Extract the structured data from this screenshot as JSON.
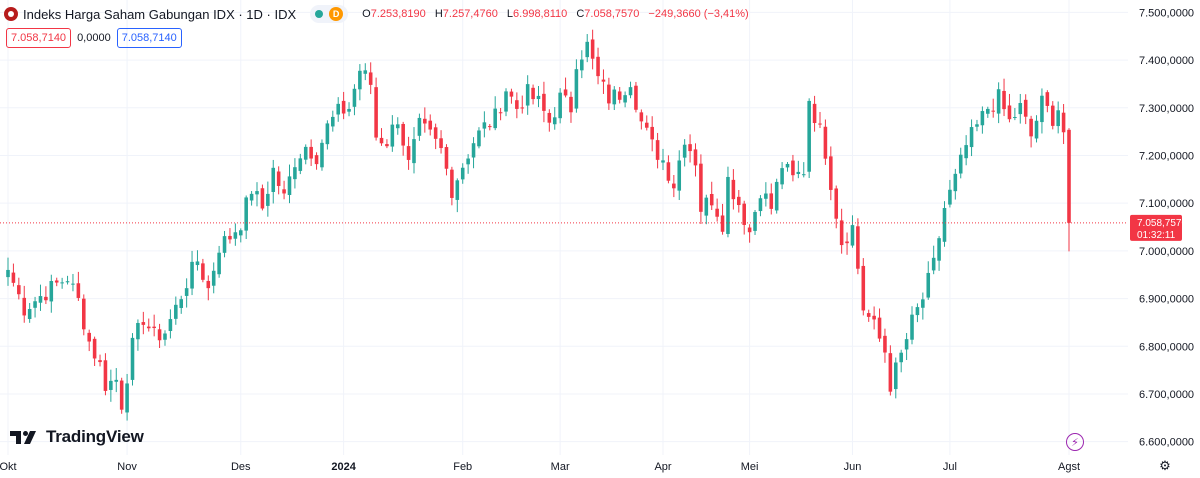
{
  "header": {
    "title": "Indeks Harga Saham Gabungan IDX · 1D · IDX",
    "market_badge": "D",
    "ohlc": [
      {
        "key": "O",
        "value": "7.253,8190"
      },
      {
        "key": "H",
        "value": "7.257,4760"
      },
      {
        "key": "L",
        "value": "6.998,8110"
      },
      {
        "key": "C",
        "value": "7.058,7570"
      }
    ],
    "change": "−249,3660 (−3,41%)"
  },
  "quote": {
    "bid": "7.058,7140",
    "spread": "0,0000",
    "ask": "7.058,7140"
  },
  "brand": "TradingView",
  "icons": {
    "logo": "idx-logo-icon",
    "alert": "lightning-icon",
    "settings": "gear-icon",
    "brand": "tradingview-logo-icon"
  },
  "colors": {
    "up": "#26a69a",
    "down": "#f23645",
    "grid": "#f0f3fa",
    "text": "#131722",
    "price_line": "#f23645"
  },
  "chart_data": {
    "type": "candlestick",
    "price_axis_labels": [
      "7.500,0000",
      "7.400,0000",
      "7.300,0000",
      "7.200,0000",
      "7.100,0000",
      "7.000,0000",
      "6.900,0000",
      "6.800,0000",
      "6.700,0000",
      "6.600,0000"
    ],
    "price_ticks": [
      7500,
      7400,
      7300,
      7200,
      7100,
      7000,
      6900,
      6800,
      6700,
      6600
    ],
    "ylim": [
      6572,
      7526
    ],
    "time_labels": [
      {
        "label": "Okt",
        "index": 0
      },
      {
        "label": "Nov",
        "index": 22
      },
      {
        "label": "Des",
        "index": 43
      },
      {
        "label": "2024",
        "index": 62
      },
      {
        "label": "Feb",
        "index": 84
      },
      {
        "label": "Mar",
        "index": 102
      },
      {
        "label": "Apr",
        "index": 121
      },
      {
        "label": "Mei",
        "index": 137
      },
      {
        "label": "Jun",
        "index": 156
      },
      {
        "label": "Jul",
        "index": 174
      },
      {
        "label": "Agst",
        "index": 196
      }
    ],
    "last_price": {
      "value": 7058.757,
      "label": "7.058,7570",
      "countdown": "01:32:11"
    },
    "anchors": [
      [
        0,
        6960
      ],
      [
        3,
        6880
      ],
      [
        6,
        6905
      ],
      [
        9,
        6930
      ],
      [
        11,
        6945
      ],
      [
        13,
        6895
      ],
      [
        15,
        6810
      ],
      [
        17,
        6760
      ],
      [
        18,
        6720
      ],
      [
        20,
        6730
      ],
      [
        21,
        6680
      ],
      [
        23,
        6800
      ],
      [
        25,
        6860
      ],
      [
        27,
        6820
      ],
      [
        29,
        6830
      ],
      [
        31,
        6880
      ],
      [
        33,
        6935
      ],
      [
        35,
        6980
      ],
      [
        37,
        6920
      ],
      [
        39,
        7010
      ],
      [
        41,
        7030
      ],
      [
        43,
        7060
      ],
      [
        45,
        7130
      ],
      [
        47,
        7090
      ],
      [
        49,
        7170
      ],
      [
        51,
        7110
      ],
      [
        53,
        7190
      ],
      [
        55,
        7220
      ],
      [
        57,
        7200
      ],
      [
        59,
        7260
      ],
      [
        61,
        7290
      ],
      [
        63,
        7300
      ],
      [
        65,
        7380
      ],
      [
        67,
        7350
      ],
      [
        68,
        7240
      ],
      [
        70,
        7230
      ],
      [
        72,
        7280
      ],
      [
        74,
        7180
      ],
      [
        76,
        7260
      ],
      [
        78,
        7240
      ],
      [
        80,
        7210
      ],
      [
        82,
        7130
      ],
      [
        84,
        7180
      ],
      [
        86,
        7230
      ],
      [
        88,
        7260
      ],
      [
        90,
        7280
      ],
      [
        92,
        7340
      ],
      [
        94,
        7300
      ],
      [
        96,
        7330
      ],
      [
        98,
        7310
      ],
      [
        100,
        7270
      ],
      [
        102,
        7320
      ],
      [
        104,
        7300
      ],
      [
        105,
        7400
      ],
      [
        107,
        7430
      ],
      [
        109,
        7360
      ],
      [
        111,
        7320
      ],
      [
        113,
        7330
      ],
      [
        115,
        7360
      ],
      [
        117,
        7270
      ],
      [
        119,
        7220
      ],
      [
        121,
        7190
      ],
      [
        123,
        7140
      ],
      [
        125,
        7240
      ],
      [
        127,
        7190
      ],
      [
        128,
        7090
      ],
      [
        130,
        7110
      ],
      [
        132,
        7060
      ],
      [
        133,
        7150
      ],
      [
        135,
        7100
      ],
      [
        137,
        7040
      ],
      [
        139,
        7130
      ],
      [
        141,
        7090
      ],
      [
        143,
        7180
      ],
      [
        145,
        7150
      ],
      [
        147,
        7170
      ],
      [
        148,
        7320
      ],
      [
        150,
        7250
      ],
      [
        151,
        7210
      ],
      [
        153,
        7080
      ],
      [
        154,
        7020
      ],
      [
        156,
        7050
      ],
      [
        158,
        6880
      ],
      [
        160,
        6840
      ],
      [
        162,
        6790
      ],
      [
        163,
        6720
      ],
      [
        165,
        6780
      ],
      [
        167,
        6850
      ],
      [
        169,
        6900
      ],
      [
        171,
        6970
      ],
      [
        173,
        7090
      ],
      [
        175,
        7150
      ],
      [
        177,
        7220
      ],
      [
        179,
        7260
      ],
      [
        181,
        7300
      ],
      [
        183,
        7320
      ],
      [
        185,
        7270
      ],
      [
        187,
        7300
      ],
      [
        189,
        7240
      ],
      [
        191,
        7310
      ],
      [
        193,
        7280
      ],
      [
        194,
        7300
      ],
      [
        195,
        7250
      ],
      [
        196,
        7058.757
      ]
    ],
    "last_candle": {
      "open": 7253.819,
      "high": 7257.476,
      "low": 6998.811,
      "close": 7058.757
    },
    "grid": true
  }
}
